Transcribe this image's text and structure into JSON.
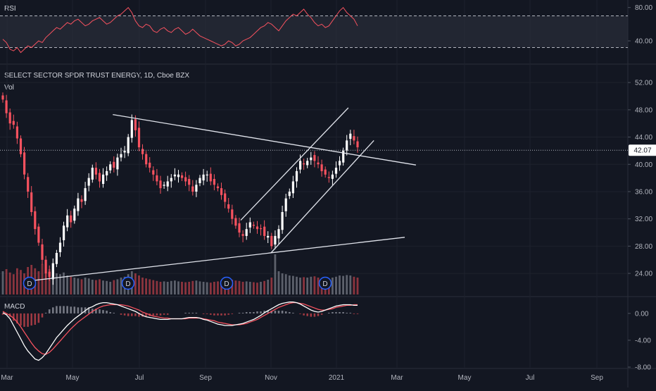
{
  "chart_data": {
    "type": "candlestick",
    "symbol": "SELECT SECTOR SPDR TRUST ENERGY, 1D, Cboe BZX",
    "last_price": "42.07",
    "x_tick_labels": [
      "Mar",
      "May",
      "Jul",
      "Sep",
      "Nov",
      "2021",
      "Mar",
      "May",
      "Jul",
      "Sep"
    ],
    "price": {
      "y_ticks": [
        "52.00",
        "48.00",
        "44.00",
        "40.00",
        "36.00",
        "32.00",
        "28.00",
        "24.00"
      ],
      "ylim": [
        20.7,
        54.6
      ],
      "volume_label": "Vol",
      "dividend_marker": "D",
      "closes": [
        49.5,
        47.5,
        46.0,
        45.8,
        43.8,
        41.5,
        38.5,
        36.0,
        33.0,
        30.5,
        28.5,
        26.0,
        24.0,
        23.5,
        25.5,
        27.0,
        28.5,
        31.0,
        32.5,
        31.5,
        33.5,
        35.0,
        34.5,
        36.5,
        38.0,
        39.5,
        38.5,
        37.5,
        38.5,
        39.0,
        40.0,
        39.5,
        41.0,
        41.5,
        42.0,
        44.0,
        46.5,
        45.0,
        42.5,
        41.5,
        40.0,
        39.5,
        38.5,
        37.5,
        36.5,
        37.0,
        37.5,
        38.0,
        38.5,
        38.5,
        38.0,
        37.5,
        37.0,
        36.0,
        37.0,
        38.0,
        38.5,
        38.5,
        37.5,
        37.0,
        36.5,
        35.5,
        34.5,
        33.5,
        32.0,
        31.0,
        30.0,
        29.5,
        30.5,
        31.5,
        31.0,
        30.5,
        30.5,
        29.5,
        29.5,
        28.0,
        29.5,
        30.5,
        33.0,
        35.0,
        36.0,
        37.5,
        39.0,
        40.5,
        40.0,
        40.5,
        41.0,
        40.5,
        40.0,
        39.0,
        38.5,
        38.0,
        38.5,
        39.5,
        40.5,
        42.0,
        43.5,
        44.5,
        43.5,
        42.5
      ],
      "volume": [
        55,
        60,
        52,
        48,
        62,
        58,
        50,
        65,
        70,
        62,
        55,
        72,
        68,
        60,
        55,
        50,
        48,
        52,
        45,
        42,
        40,
        38,
        36,
        40,
        38,
        35,
        34,
        36,
        33,
        32,
        30,
        34,
        36,
        40,
        42,
        48,
        55,
        50,
        45,
        40,
        38,
        36,
        34,
        32,
        30,
        31,
        30,
        32,
        33,
        31,
        30,
        29,
        30,
        32,
        33,
        31,
        30,
        29,
        28,
        30,
        31,
        32,
        34,
        36,
        35,
        33,
        32,
        30,
        31,
        30,
        29,
        28,
        30,
        32,
        35,
        40,
        95,
        55,
        50,
        48,
        45,
        44,
        42,
        40,
        41,
        40,
        42,
        43,
        40,
        38,
        36,
        38,
        40,
        42,
        45,
        44,
        46,
        45,
        42,
        40
      ],
      "trendlines": [
        {
          "from": [
            0.172,
            47.3
          ],
          "to": [
            0.634,
            39.9
          ]
        },
        {
          "from": [
            0.036,
            22.8
          ],
          "to": [
            0.617,
            29.3
          ]
        },
        {
          "from": [
            0.367,
            31.8
          ],
          "to": [
            0.531,
            48.3
          ]
        },
        {
          "from": [
            0.413,
            27.0
          ],
          "to": [
            0.57,
            43.5
          ]
        }
      ]
    },
    "rsi": {
      "label": "RSI",
      "y_ticks": [
        "80.00",
        "40.00"
      ],
      "ylim": [
        13,
        89
      ],
      "band": [
        32,
        70
      ],
      "values": [
        42,
        38,
        30,
        28,
        32,
        26,
        30,
        34,
        32,
        36,
        40,
        38,
        44,
        48,
        52,
        56,
        54,
        58,
        62,
        60,
        64,
        66,
        62,
        58,
        60,
        64,
        66,
        68,
        64,
        60,
        62,
        66,
        70,
        72,
        76,
        80,
        74,
        64,
        58,
        56,
        60,
        58,
        52,
        50,
        54,
        56,
        52,
        50,
        54,
        56,
        52,
        48,
        50,
        54,
        50,
        46,
        44,
        42,
        40,
        38,
        36,
        34,
        36,
        40,
        38,
        34,
        36,
        40,
        42,
        44,
        48,
        52,
        56,
        58,
        62,
        60,
        56,
        52,
        58,
        64,
        68,
        72,
        70,
        74,
        78,
        72,
        68,
        62,
        58,
        60,
        56,
        58,
        64,
        70,
        76,
        80,
        74,
        70,
        66,
        58
      ],
      "color": "#f7525f"
    },
    "macd": {
      "label": "MACD",
      "y_ticks": [
        "0.00",
        "-4.00",
        "-8.00"
      ],
      "ylim": [
        -8.1,
        2.4
      ],
      "macd": [
        0.1,
        -0.2,
        -0.8,
        -1.8,
        -2.8,
        -3.8,
        -4.8,
        -5.6,
        -6.2,
        -6.8,
        -7.0,
        -6.6,
        -6.0,
        -5.2,
        -4.4,
        -3.6,
        -3.0,
        -2.4,
        -1.8,
        -1.3,
        -0.8,
        -0.4,
        0.0,
        0.4,
        0.8,
        1.0,
        1.3,
        1.5,
        1.6,
        1.6,
        1.5,
        1.4,
        1.3,
        1.1,
        0.9,
        0.7,
        0.5,
        0.3,
        0.0,
        -0.3,
        -0.5,
        -0.6,
        -0.7,
        -0.8,
        -0.9,
        -0.9,
        -0.9,
        -0.8,
        -0.8,
        -0.8,
        -0.8,
        -0.7,
        -0.6,
        -0.6,
        -0.6,
        -0.7,
        -0.9,
        -1.0,
        -1.2,
        -1.4,
        -1.6,
        -1.7,
        -1.8,
        -1.8,
        -1.8,
        -1.7,
        -1.6,
        -1.5,
        -1.3,
        -1.1,
        -0.9,
        -0.6,
        -0.3,
        0.1,
        0.4,
        0.7,
        1.0,
        1.3,
        1.5,
        1.6,
        1.7,
        1.7,
        1.6,
        1.4,
        1.1,
        0.8,
        0.5,
        0.3,
        0.2,
        0.3,
        0.5,
        0.7,
        0.9,
        1.1,
        1.2,
        1.3,
        1.3,
        1.3,
        1.2,
        1.2
      ],
      "signal": [
        0.3,
        0.0,
        -0.3,
        -0.7,
        -1.3,
        -2.0,
        -2.8,
        -3.6,
        -4.4,
        -5.1,
        -5.6,
        -6.0,
        -6.1,
        -5.8,
        -5.3,
        -4.7,
        -4.1,
        -3.5,
        -2.9,
        -2.3,
        -1.8,
        -1.3,
        -0.9,
        -0.5,
        -0.1,
        0.3,
        0.6,
        0.9,
        1.1,
        1.2,
        1.3,
        1.3,
        1.3,
        1.3,
        1.2,
        1.1,
        0.9,
        0.7,
        0.5,
        0.2,
        0.0,
        -0.2,
        -0.4,
        -0.5,
        -0.6,
        -0.7,
        -0.7,
        -0.8,
        -0.8,
        -0.8,
        -0.8,
        -0.8,
        -0.7,
        -0.7,
        -0.7,
        -0.7,
        -0.8,
        -0.9,
        -1.0,
        -1.1,
        -1.3,
        -1.4,
        -1.5,
        -1.6,
        -1.7,
        -1.7,
        -1.7,
        -1.6,
        -1.5,
        -1.3,
        -1.1,
        -0.9,
        -0.6,
        -0.3,
        0.0,
        0.3,
        0.6,
        0.9,
        1.1,
        1.3,
        1.5,
        1.6,
        1.6,
        1.5,
        1.4,
        1.2,
        1.0,
        0.8,
        0.6,
        0.5,
        0.5,
        0.6,
        0.7,
        0.9,
        1.0,
        1.1,
        1.2,
        1.2,
        1.3,
        1.3
      ],
      "macd_color": "#ffffff",
      "signal_color": "#f7525f"
    }
  },
  "colors": {
    "up": "#ffffff",
    "down": "#f7525f",
    "volume_up": "#6a6d78",
    "volume_down": "#a13a43",
    "histogram": "#787b86",
    "grid": "#1e222d",
    "separator": "#2a2e39",
    "band": "#2a2e39",
    "price_badge_bg": "#ffffff",
    "price_badge_text": "#131722"
  },
  "icons": {
    "dividend": "dividend-marker-icon"
  }
}
